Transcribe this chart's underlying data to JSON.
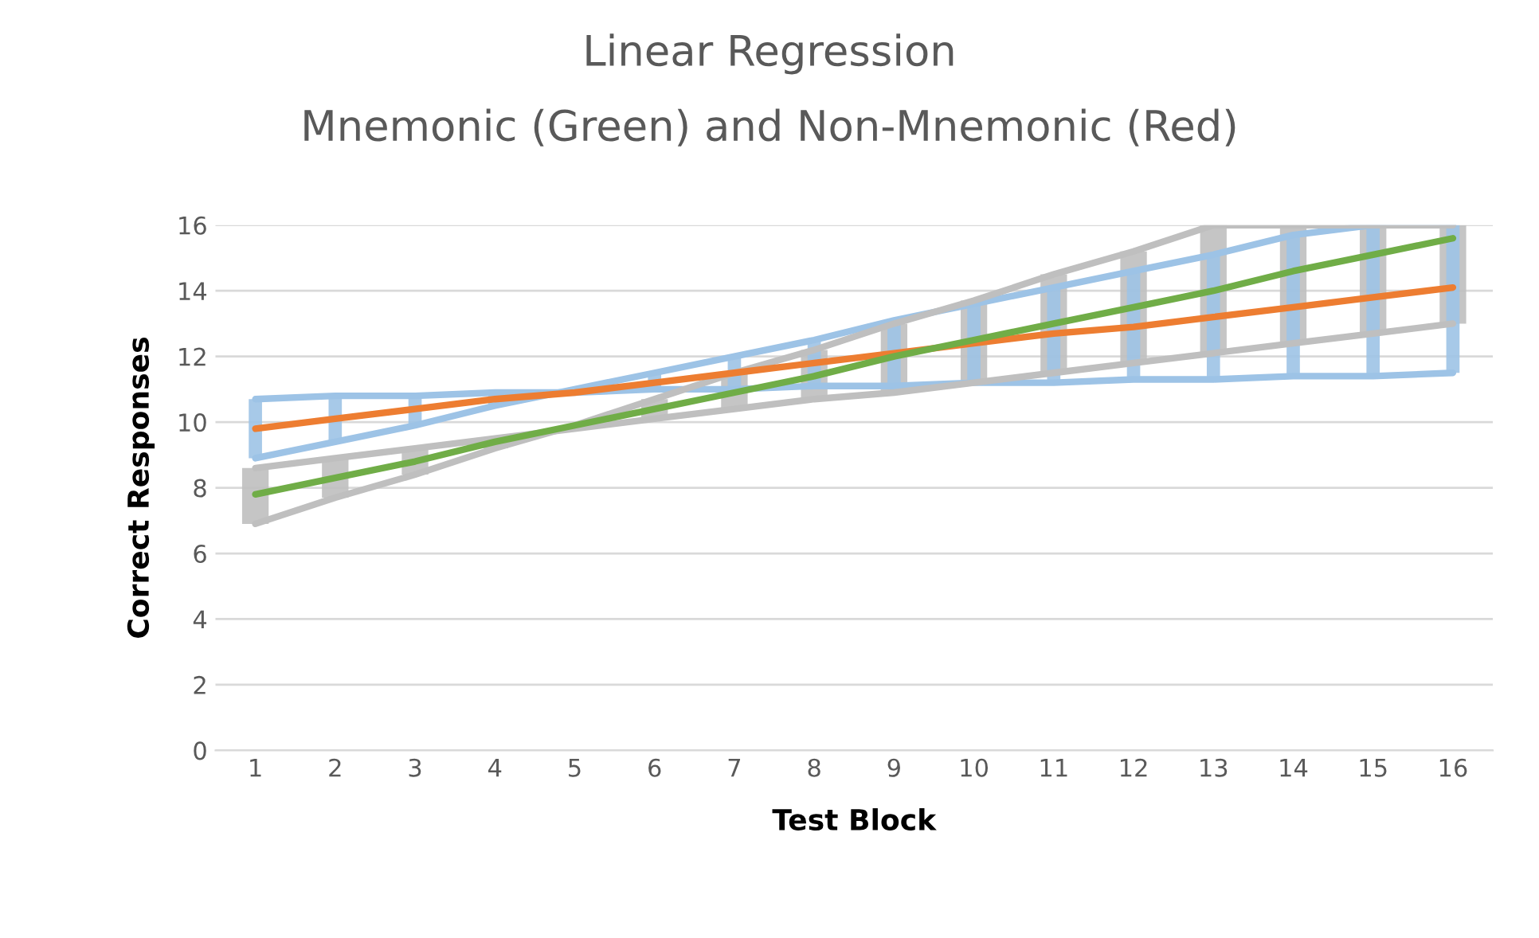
{
  "chart_data": {
    "type": "line",
    "title": "Linear Regression",
    "subtitle": "Mnemonic (Green) and Non-Mnemonic (Red)",
    "xlabel": "Test Block",
    "ylabel": "Correct Responses",
    "categories": [
      "1",
      "2",
      "3",
      "4",
      "5",
      "6",
      "7",
      "8",
      "9",
      "10",
      "11",
      "12",
      "13",
      "14",
      "15",
      "16"
    ],
    "series": [
      {
        "color": "#9dc3e6",
        "values": [
          8.9,
          9.4,
          9.9,
          10.5,
          11.0,
          11.5,
          12.0,
          12.5,
          13.1,
          13.6,
          14.1,
          14.6,
          15.1,
          15.7,
          16,
          16
        ],
        "errors": [
          [
            8.9,
            10.7
          ],
          [
            9.4,
            10.8
          ],
          [
            9.9,
            10.8
          ],
          [
            10.5,
            10.9
          ],
          [
            10.9,
            11.0
          ],
          [
            11.0,
            11.5
          ],
          [
            11.0,
            12.0
          ],
          [
            11.1,
            12.5
          ],
          [
            11.1,
            13.1
          ],
          [
            11.2,
            13.6
          ],
          [
            11.2,
            14.1
          ],
          [
            11.3,
            14.6
          ],
          [
            11.3,
            15.1
          ],
          [
            11.4,
            15.7
          ],
          [
            11.4,
            16
          ],
          [
            11.5,
            16
          ]
        ]
      },
      {
        "color": "#9dc3e6",
        "values": [
          10.7,
          10.8,
          10.8,
          10.9,
          10.9,
          11.0,
          11.0,
          11.1,
          11.1,
          11.2,
          11.2,
          11.3,
          11.3,
          11.4,
          11.4,
          11.5
        ]
      },
      {
        "color": "#bfbfbf",
        "values": [
          6.9,
          7.7,
          8.4,
          9.2,
          9.9,
          10.7,
          11.5,
          12.2,
          13.0,
          13.7,
          14.5,
          15.2,
          16.0,
          16,
          16,
          16
        ],
        "errors": [
          [
            6.9,
            8.6
          ],
          [
            7.7,
            8.9
          ],
          [
            8.4,
            9.2
          ],
          [
            9.2,
            9.5
          ],
          [
            9.8,
            9.9
          ],
          [
            10.1,
            10.7
          ],
          [
            10.4,
            11.5
          ],
          [
            10.7,
            12.2
          ],
          [
            10.9,
            13.0
          ],
          [
            11.2,
            13.7
          ],
          [
            11.5,
            14.5
          ],
          [
            11.8,
            15.2
          ],
          [
            12.1,
            16.0
          ],
          [
            12.4,
            16
          ],
          [
            12.7,
            16
          ],
          [
            13.0,
            16
          ]
        ]
      },
      {
        "color": "#bfbfbf",
        "values": [
          8.6,
          8.9,
          9.2,
          9.5,
          9.8,
          10.1,
          10.4,
          10.7,
          10.9,
          11.2,
          11.5,
          11.8,
          12.1,
          12.4,
          12.7,
          13.0
        ]
      },
      {
        "color": "#ed7d31",
        "values": [
          9.8,
          10.1,
          10.4,
          10.7,
          10.9,
          11.2,
          11.5,
          11.8,
          12.1,
          12.4,
          12.7,
          12.9,
          13.2,
          13.5,
          13.8,
          14.1
        ]
      },
      {
        "color": "#70ad47",
        "values": [
          7.8,
          8.3,
          8.8,
          9.4,
          9.9,
          10.4,
          10.9,
          11.4,
          12.0,
          12.5,
          13.0,
          13.5,
          14.0,
          14.6,
          15.1,
          15.6
        ]
      }
    ],
    "ylim": [
      0,
      16
    ],
    "yticks": [
      0,
      2,
      4,
      6,
      8,
      10,
      12,
      14,
      16
    ],
    "grid": "y",
    "marker": "none",
    "line_style": "solid"
  }
}
